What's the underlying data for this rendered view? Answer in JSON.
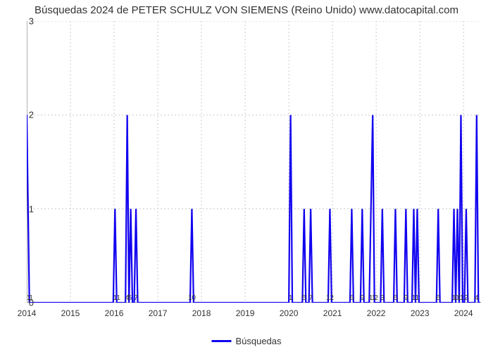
{
  "title": "Búsquedas 2024 de PETER SCHULZ VON SIEMENS (Reino Unido) www.datocapital.com",
  "chart": {
    "type": "line",
    "line_color": "#1000ef",
    "line_width": 2.2,
    "background_color": "#ffffff",
    "grid_color": "#cccccc",
    "grid_dash": "2,3",
    "axis_color": "#666666",
    "ylim": [
      0,
      3
    ],
    "yticks": [
      0,
      1,
      2,
      3
    ],
    "x_start_year": 2014,
    "x_end_value": 2024.4,
    "year_ticks": [
      2014,
      2015,
      2016,
      2017,
      2018,
      2019,
      2020,
      2021,
      2022,
      2023,
      2024
    ],
    "minor_labels": [
      {
        "x": 2014.04,
        "t": "1"
      },
      {
        "x": 2014.1,
        "t": "1"
      },
      {
        "x": 2016.02,
        "t": "1"
      },
      {
        "x": 2016.1,
        "t": "1"
      },
      {
        "x": 2016.3,
        "t": "4"
      },
      {
        "x": 2016.36,
        "t": "5"
      },
      {
        "x": 2016.5,
        "t": "7"
      },
      {
        "x": 2017.78,
        "t": "10"
      },
      {
        "x": 2020.04,
        "t": "1"
      },
      {
        "x": 2020.35,
        "t": "5"
      },
      {
        "x": 2020.5,
        "t": "7"
      },
      {
        "x": 2020.94,
        "t": "12"
      },
      {
        "x": 2021.44,
        "t": "6"
      },
      {
        "x": 2021.68,
        "t": "9"
      },
      {
        "x": 2021.88,
        "t": "1"
      },
      {
        "x": 2021.94,
        "t": "1"
      },
      {
        "x": 2022.0,
        "t": "2"
      },
      {
        "x": 2022.14,
        "t": "3"
      },
      {
        "x": 2022.44,
        "t": "6"
      },
      {
        "x": 2022.68,
        "t": "9"
      },
      {
        "x": 2022.86,
        "t": "1"
      },
      {
        "x": 2022.94,
        "t": "1"
      },
      {
        "x": 2023.42,
        "t": "6"
      },
      {
        "x": 2023.78,
        "t": "1"
      },
      {
        "x": 2023.84,
        "t": "0"
      },
      {
        "x": 2023.9,
        "t": "1"
      },
      {
        "x": 2023.96,
        "t": "1"
      },
      {
        "x": 2024.06,
        "t": "2"
      },
      {
        "x": 2024.3,
        "t": "4"
      }
    ],
    "points": [
      [
        2014.0,
        2
      ],
      [
        2014.06,
        0
      ],
      [
        2014.1,
        0
      ],
      [
        2015.98,
        0
      ],
      [
        2016.02,
        1
      ],
      [
        2016.06,
        0
      ],
      [
        2016.1,
        0
      ],
      [
        2016.26,
        0
      ],
      [
        2016.3,
        2
      ],
      [
        2016.34,
        0
      ],
      [
        2016.38,
        1
      ],
      [
        2016.42,
        0
      ],
      [
        2016.46,
        0
      ],
      [
        2016.5,
        1
      ],
      [
        2016.54,
        0
      ],
      [
        2017.74,
        0
      ],
      [
        2017.78,
        1
      ],
      [
        2017.82,
        0
      ],
      [
        2020.0,
        0
      ],
      [
        2020.04,
        2
      ],
      [
        2020.08,
        0
      ],
      [
        2020.31,
        0
      ],
      [
        2020.35,
        1
      ],
      [
        2020.39,
        0
      ],
      [
        2020.46,
        0
      ],
      [
        2020.5,
        1
      ],
      [
        2020.54,
        0
      ],
      [
        2020.9,
        0
      ],
      [
        2020.94,
        1
      ],
      [
        2020.98,
        0
      ],
      [
        2021.4,
        0
      ],
      [
        2021.44,
        1
      ],
      [
        2021.48,
        0
      ],
      [
        2021.64,
        0
      ],
      [
        2021.68,
        1
      ],
      [
        2021.72,
        0
      ],
      [
        2021.84,
        0
      ],
      [
        2021.88,
        1
      ],
      [
        2021.92,
        2
      ],
      [
        2021.96,
        0
      ],
      [
        2022.1,
        0
      ],
      [
        2022.14,
        1
      ],
      [
        2022.18,
        0
      ],
      [
        2022.4,
        0
      ],
      [
        2022.44,
        1
      ],
      [
        2022.48,
        0
      ],
      [
        2022.64,
        0
      ],
      [
        2022.68,
        1
      ],
      [
        2022.72,
        0
      ],
      [
        2022.82,
        0
      ],
      [
        2022.86,
        1
      ],
      [
        2022.9,
        0
      ],
      [
        2022.94,
        1
      ],
      [
        2022.98,
        0
      ],
      [
        2023.38,
        0
      ],
      [
        2023.42,
        1
      ],
      [
        2023.46,
        0
      ],
      [
        2023.74,
        0
      ],
      [
        2023.78,
        1
      ],
      [
        2023.82,
        0
      ],
      [
        2023.86,
        1
      ],
      [
        2023.9,
        0
      ],
      [
        2023.94,
        2
      ],
      [
        2023.98,
        0
      ],
      [
        2024.02,
        0
      ],
      [
        2024.06,
        1
      ],
      [
        2024.1,
        0
      ],
      [
        2024.26,
        0
      ],
      [
        2024.3,
        2
      ],
      [
        2024.34,
        0
      ],
      [
        2024.38,
        0
      ]
    ]
  },
  "legend_label": "Búsquedas"
}
